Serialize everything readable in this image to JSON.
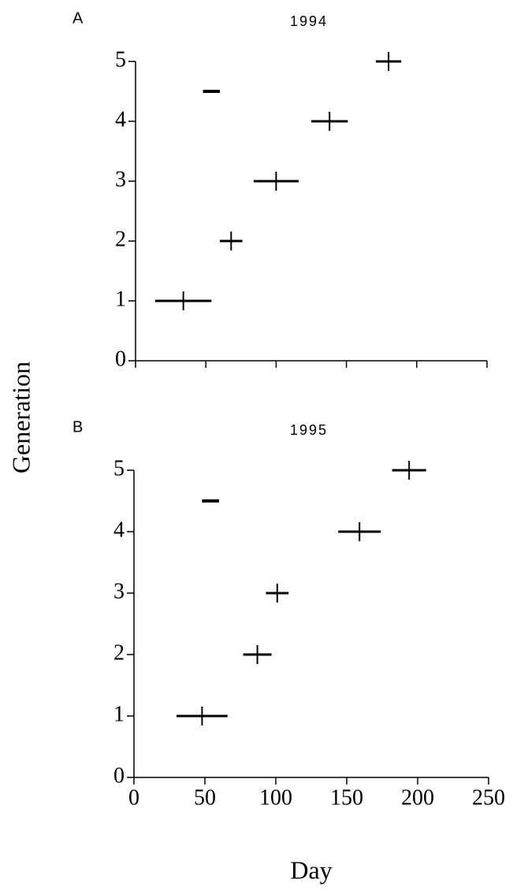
{
  "chart_data": [
    {
      "type": "scatter",
      "panel_label": "A",
      "title": "1994",
      "series": [
        {
          "marker": "plus",
          "x": [
            34,
            68,
            100,
            138,
            180
          ],
          "values": [
            1,
            2,
            3,
            4,
            5
          ],
          "xerr": [
            20,
            8,
            16,
            13,
            9
          ]
        },
        {
          "marker": "dash",
          "x": [
            54
          ],
          "values": [
            4.5
          ],
          "xerr": [
            6
          ]
        }
      ],
      "xlim": [
        0,
        250
      ],
      "ylim": [
        0,
        5
      ],
      "xticks": [
        0,
        50,
        100,
        150,
        200,
        250
      ],
      "yticks": [
        0,
        1,
        2,
        3,
        4,
        5
      ],
      "xtick_labels": false
    },
    {
      "type": "scatter",
      "panel_label": "B",
      "title": "1995",
      "series": [
        {
          "marker": "plus",
          "x": [
            48,
            87,
            101,
            159,
            194
          ],
          "values": [
            1,
            2,
            3,
            4,
            5
          ],
          "xerr": [
            18,
            10,
            8,
            15,
            12
          ]
        },
        {
          "marker": "dash",
          "x": [
            54
          ],
          "values": [
            4.5
          ],
          "xerr": [
            6
          ]
        }
      ],
      "xlim": [
        0,
        250
      ],
      "ylim": [
        0,
        5
      ],
      "xticks": [
        0,
        50,
        100,
        150,
        200,
        250
      ],
      "yticks": [
        0,
        1,
        2,
        3,
        4,
        5
      ],
      "xtick_labels": true
    }
  ],
  "shared": {
    "xlabel": "Day",
    "ylabel": "Generation"
  }
}
